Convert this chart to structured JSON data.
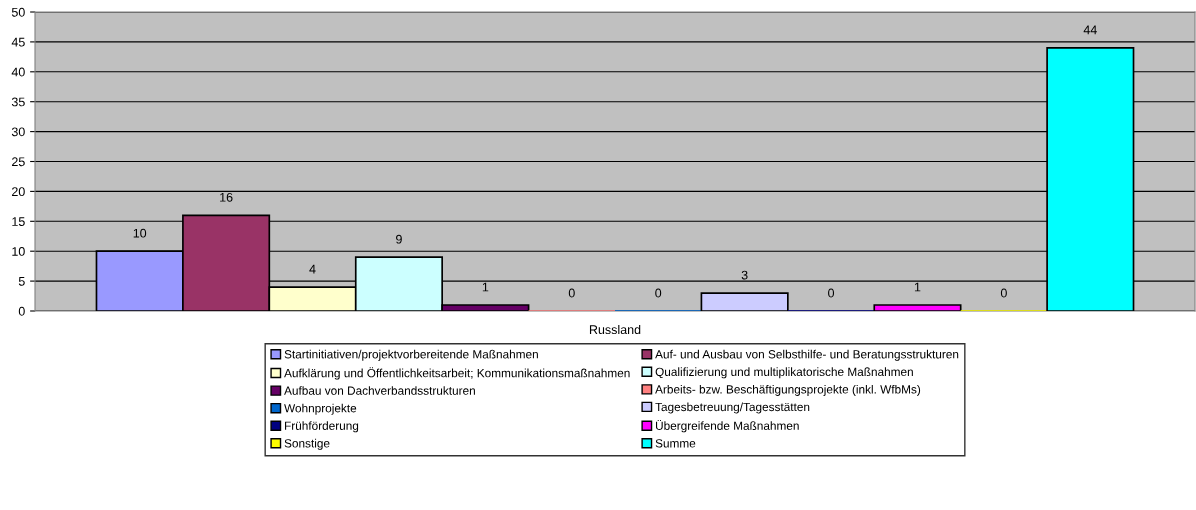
{
  "chart_data": {
    "type": "bar",
    "categories": [
      "Russland"
    ],
    "series": [
      {
        "name": "Startinitiativen/projektvorbereitende Maßnahmen",
        "color": "#9999ff",
        "values": [
          10
        ]
      },
      {
        "name": "Auf- und Ausbau von Selbsthilfe- und Beratungsstrukturen",
        "color": "#993366",
        "values": [
          16
        ]
      },
      {
        "name": "Aufklärung und Öffentlichkeitsarbeit; Kommunikationsmaßnahmen",
        "color": "#ffffcc",
        "values": [
          4
        ]
      },
      {
        "name": "Qualifizierung und multiplikatorische Maßnahmen",
        "color": "#ccffff",
        "values": [
          9
        ]
      },
      {
        "name": "Aufbau von Dachverbandsstrukturen",
        "color": "#660066",
        "values": [
          1
        ]
      },
      {
        "name": "Arbeits- bzw. Beschäftigungsprojekte (inkl. WfbMs)",
        "color": "#ff8080",
        "values": [
          0
        ]
      },
      {
        "name": "Wohnprojekte",
        "color": "#0066cc",
        "values": [
          0
        ]
      },
      {
        "name": "Tagesbetreuung/Tagesstätten",
        "color": "#ccccff",
        "values": [
          3
        ]
      },
      {
        "name": "Frühförderung",
        "color": "#000080",
        "values": [
          0
        ]
      },
      {
        "name": "Übergreifende Maßnahmen",
        "color": "#ff00ff",
        "values": [
          1
        ]
      },
      {
        "name": "Sonstige",
        "color": "#ffff00",
        "values": [
          0
        ]
      },
      {
        "name": "Summe",
        "color": "#00ffff",
        "values": [
          44
        ]
      }
    ],
    "ylim": [
      0,
      50
    ],
    "yticks": [
      0,
      5,
      10,
      15,
      20,
      25,
      30,
      35,
      40,
      45,
      50
    ],
    "grid": "y",
    "legend": "bottom",
    "data_labels": true
  }
}
